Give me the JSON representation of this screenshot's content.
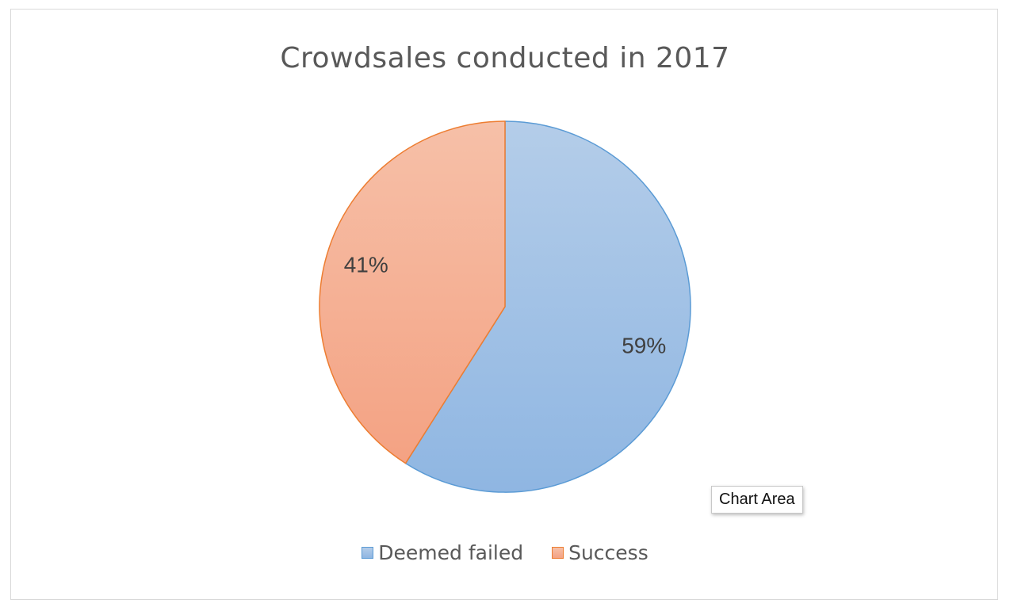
{
  "chart_data": {
    "type": "pie",
    "title": "Crowdsales  conducted  in 2017",
    "categories": [
      "Deemed failed",
      "Success"
    ],
    "values": [
      59,
      41
    ],
    "labels": [
      "59%",
      "41%"
    ],
    "colors": {
      "Deemed failed": {
        "fill_light": "#b4cde9",
        "fill_dark": "#8fb6e2",
        "stroke": "#5b9bd5"
      },
      "Success": {
        "fill_light": "#f6c0a8",
        "fill_dark": "#f4a283",
        "stroke": "#ed7d31"
      }
    },
    "start_angle": "12 o'clock",
    "direction": "clockwise",
    "legend_position": "bottom"
  },
  "tooltip": {
    "text": "Chart Area"
  }
}
